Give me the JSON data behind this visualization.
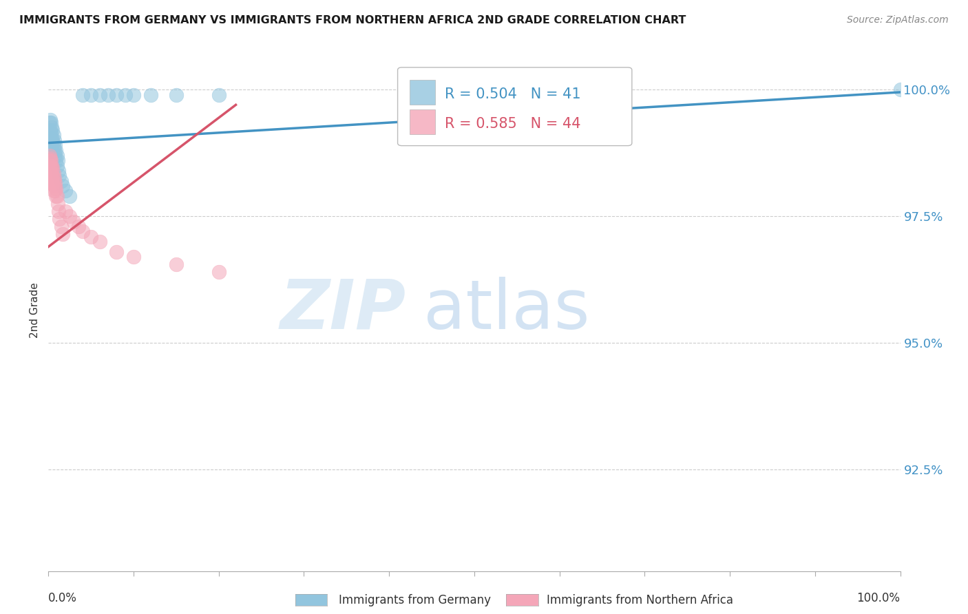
{
  "title": "IMMIGRANTS FROM GERMANY VS IMMIGRANTS FROM NORTHERN AFRICA 2ND GRADE CORRELATION CHART",
  "source": "Source: ZipAtlas.com",
  "ylabel": "2nd Grade",
  "germany_color": "#92c5de",
  "northern_africa_color": "#f4a6b8",
  "germany_line_color": "#4393c3",
  "northern_africa_line_color": "#d6546a",
  "germany_R": 0.504,
  "germany_N": 41,
  "northern_africa_R": 0.585,
  "northern_africa_N": 44,
  "watermark_zip": "ZIP",
  "watermark_atlas": "atlas",
  "legend_label_germany": "Immigrants from Germany",
  "legend_label_northern_africa": "Immigrants from Northern Africa",
  "xlim": [
    0.0,
    1.0
  ],
  "ylim": [
    0.905,
    1.008
  ],
  "yticks": [
    0.925,
    0.95,
    0.975,
    1.0
  ],
  "ytick_labels": [
    "92.5%",
    "95.0%",
    "97.5%",
    "100.0%"
  ],
  "germany_x": [
    0.001,
    0.002,
    0.002,
    0.003,
    0.003,
    0.003,
    0.004,
    0.004,
    0.004,
    0.005,
    0.005,
    0.005,
    0.006,
    0.006,
    0.007,
    0.007,
    0.008,
    0.008,
    0.009,
    0.009,
    0.01,
    0.01,
    0.011,
    0.012,
    0.013,
    0.015,
    0.017,
    0.02,
    0.025,
    0.04,
    0.05,
    0.06,
    0.07,
    0.08,
    0.09,
    0.1,
    0.12,
    0.15,
    0.2,
    0.5,
    1.0
  ],
  "germany_y": [
    0.9935,
    0.994,
    0.992,
    0.9935,
    0.9915,
    0.99,
    0.9925,
    0.9905,
    0.989,
    0.992,
    0.99,
    0.988,
    0.991,
    0.989,
    0.99,
    0.988,
    0.989,
    0.987,
    0.988,
    0.986,
    0.987,
    0.985,
    0.986,
    0.984,
    0.983,
    0.982,
    0.981,
    0.98,
    0.979,
    0.999,
    0.999,
    0.999,
    0.999,
    0.999,
    0.999,
    0.999,
    0.999,
    0.999,
    0.999,
    0.999,
    1.0
  ],
  "northern_africa_x": [
    0.001,
    0.001,
    0.001,
    0.001,
    0.002,
    0.002,
    0.002,
    0.002,
    0.003,
    0.003,
    0.003,
    0.003,
    0.004,
    0.004,
    0.004,
    0.005,
    0.005,
    0.005,
    0.006,
    0.006,
    0.006,
    0.007,
    0.007,
    0.008,
    0.008,
    0.009,
    0.009,
    0.01,
    0.011,
    0.012,
    0.013,
    0.015,
    0.017,
    0.02,
    0.025,
    0.03,
    0.035,
    0.04,
    0.05,
    0.06,
    0.08,
    0.1,
    0.15,
    0.2
  ],
  "northern_africa_y": [
    0.987,
    0.986,
    0.9845,
    0.983,
    0.9865,
    0.985,
    0.9835,
    0.982,
    0.986,
    0.9845,
    0.983,
    0.9815,
    0.985,
    0.9835,
    0.982,
    0.9845,
    0.983,
    0.9815,
    0.9835,
    0.982,
    0.98,
    0.9825,
    0.981,
    0.9815,
    0.98,
    0.9805,
    0.979,
    0.979,
    0.9775,
    0.976,
    0.9745,
    0.973,
    0.9715,
    0.976,
    0.975,
    0.974,
    0.973,
    0.972,
    0.971,
    0.97,
    0.968,
    0.967,
    0.9655,
    0.964
  ],
  "germany_trendline_x": [
    0.0,
    1.0
  ],
  "germany_trendline_y": [
    0.9895,
    0.9995
  ],
  "na_trendline_x": [
    0.0,
    0.22
  ],
  "na_trendline_y": [
    0.969,
    0.997
  ]
}
